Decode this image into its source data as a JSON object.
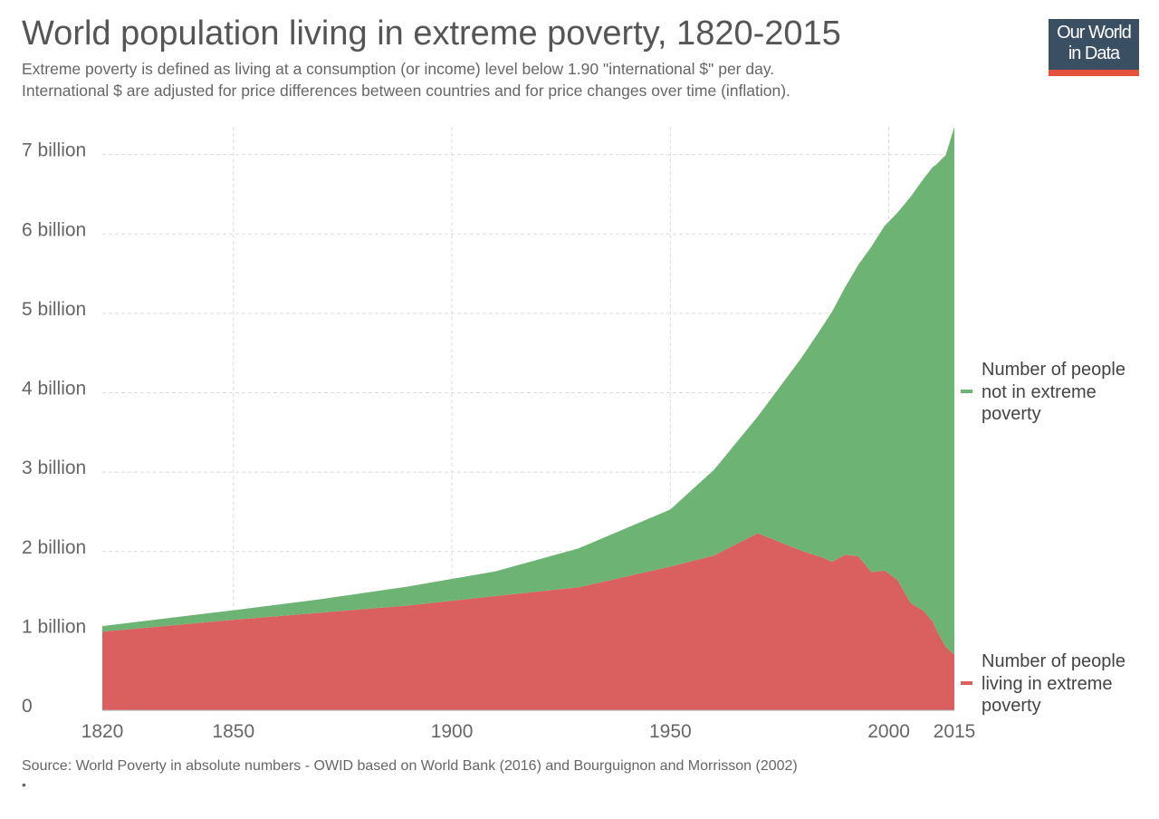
{
  "header": {
    "title": "World population living in extreme poverty, 1820-2015",
    "subtitle_line1": "Extreme poverty is defined as living at a consumption (or income) level below 1.90 \"international $\" per day.",
    "subtitle_line2": "International $ are adjusted for price differences between countries and for price changes over time (inflation)."
  },
  "logo": {
    "line1": "Our World",
    "line2": "in Data",
    "bg_color": "#3b4f63",
    "accent_color": "#e5513a"
  },
  "footer": {
    "source": "Source: World Poverty in absolute numbers - OWID based on World Bank (2016) and Bourguignon and Morrisson (2002)",
    "bullet": "•"
  },
  "chart_data": {
    "type": "area",
    "stacked": true,
    "title": "World population living in extreme poverty, 1820-2015",
    "xlim": [
      1820,
      2015
    ],
    "ylim": [
      0,
      7350000000
    ],
    "x_ticks": [
      1820,
      1850,
      1900,
      1950,
      2000,
      2015
    ],
    "y_ticks": [
      {
        "value": 0,
        "label": "0"
      },
      {
        "value": 1000000000,
        "label": "1 billion"
      },
      {
        "value": 2000000000,
        "label": "2 billion"
      },
      {
        "value": 3000000000,
        "label": "3 billion"
      },
      {
        "value": 4000000000,
        "label": "4 billion"
      },
      {
        "value": 5000000000,
        "label": "5 billion"
      },
      {
        "value": 6000000000,
        "label": "6 billion"
      },
      {
        "value": 7000000000,
        "label": "7 billion"
      }
    ],
    "grid": true,
    "legend_placement": "right",
    "x": [
      1820,
      1850,
      1870,
      1890,
      1910,
      1929,
      1950,
      1960,
      1970,
      1980,
      1985,
      1987,
      1990,
      1993,
      1996,
      1999,
      2002,
      2005,
      2008,
      2010,
      2011,
      2012,
      2013,
      2015
    ],
    "series": [
      {
        "name": "Number of people living in extreme poverty",
        "color": "#d9605f",
        "values": [
          990000000,
          1140000000,
          1230000000,
          1320000000,
          1440000000,
          1550000000,
          1810000000,
          1950000000,
          2230000000,
          2010000000,
          1920000000,
          1870000000,
          1960000000,
          1940000000,
          1740000000,
          1760000000,
          1640000000,
          1350000000,
          1250000000,
          1120000000,
          1000000000,
          900000000,
          800000000,
          700000000
        ]
      },
      {
        "name": "Number of people not in extreme poverty",
        "color": "#6db373",
        "values": [
          70000000,
          120000000,
          170000000,
          240000000,
          310000000,
          490000000,
          720000000,
          1080000000,
          1470000000,
          2430000000,
          2930000000,
          3150000000,
          3370000000,
          3670000000,
          4100000000,
          4340000000,
          4630000000,
          5120000000,
          5450000000,
          5720000000,
          5880000000,
          6040000000,
          6190000000,
          6650000000
        ]
      }
    ]
  }
}
